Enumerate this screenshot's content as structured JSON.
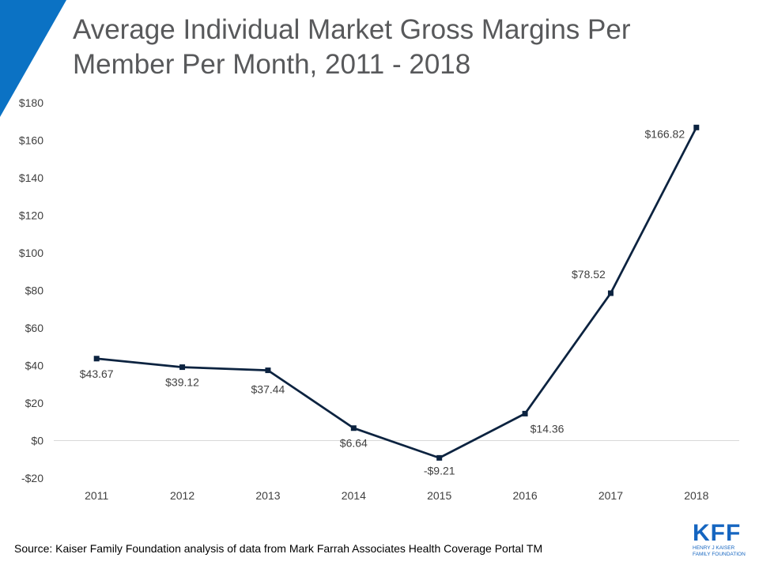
{
  "header": {
    "title_line1": "Average Individual Market Gross Margins Per",
    "title_line2": "Member Per Month, 2011 - 2018"
  },
  "colors": {
    "accent": "#0b72c4",
    "line": "#0c2340",
    "text": "#404040",
    "title": "#58595b",
    "logo": "#1565c0"
  },
  "chart_data": {
    "type": "line",
    "title": "Average Individual Market Gross Margins Per Member Per Month, 2011 - 2018",
    "xlabel": "",
    "ylabel": "",
    "categories": [
      "2011",
      "2012",
      "2013",
      "2014",
      "2015",
      "2016",
      "2017",
      "2018"
    ],
    "series": [
      {
        "name": "Gross margin per member per month",
        "values": [
          43.67,
          39.12,
          37.44,
          6.64,
          -9.21,
          14.36,
          78.52,
          166.82
        ]
      }
    ],
    "data_labels": [
      "$43.67",
      "$39.12",
      "$37.44",
      "$6.64",
      "-$9.21",
      "$14.36",
      "$78.52",
      "$166.82"
    ],
    "yticks": [
      -20,
      0,
      20,
      40,
      60,
      80,
      100,
      120,
      140,
      160,
      180
    ],
    "ytick_labels": [
      "-$20",
      "$0",
      "$20",
      "$40",
      "$60",
      "$80",
      "$100",
      "$120",
      "$140",
      "$160",
      "$180"
    ],
    "ylim": [
      -20,
      180
    ],
    "grid": false,
    "zero_line": true
  },
  "footer": {
    "source": "Source: Kaiser Family Foundation analysis of data from Mark Farrah Associates Health Coverage Portal TM"
  },
  "logo": {
    "name": "KFF",
    "line1": "HENRY J KAISER",
    "line2": "FAMILY FOUNDATION"
  }
}
